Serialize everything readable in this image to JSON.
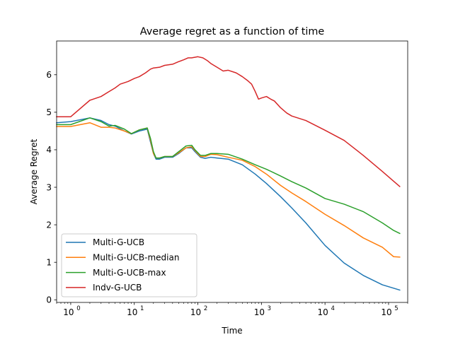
{
  "chart_data": {
    "type": "line",
    "title": "Average regret as a function of time",
    "xlabel": "Time",
    "ylabel": "Average Regret",
    "xscale": "log",
    "xlim": [
      0.6,
      200000
    ],
    "ylim": [
      -0.07,
      6.9
    ],
    "xticks": [
      {
        "value": 1,
        "base": "10",
        "exp": "0"
      },
      {
        "value": 10,
        "base": "10",
        "exp": "1"
      },
      {
        "value": 100,
        "base": "10",
        "exp": "2"
      },
      {
        "value": 1000,
        "base": "10",
        "exp": "3"
      },
      {
        "value": 10000,
        "base": "10",
        "exp": "4"
      },
      {
        "value": 100000,
        "base": "10",
        "exp": "5"
      }
    ],
    "yticks": [
      0,
      1,
      2,
      3,
      4,
      5,
      6
    ],
    "grid": false,
    "legend_position": "lower-left",
    "series": [
      {
        "name": "Multi-G-UCB",
        "color": "#1f77b4",
        "x": [
          0.6,
          1,
          2,
          3,
          4,
          5,
          7,
          9,
          12,
          16,
          18,
          20,
          22,
          25,
          30,
          40,
          50,
          65,
          80,
          90,
          110,
          130,
          160,
          200,
          300,
          500,
          800,
          1200,
          2000,
          3000,
          5000,
          10000,
          20000,
          40000,
          80000,
          150000
        ],
        "y": [
          4.72,
          4.75,
          4.85,
          4.78,
          4.67,
          4.63,
          4.5,
          4.42,
          4.5,
          4.55,
          4.2,
          3.9,
          3.75,
          3.75,
          3.8,
          3.8,
          3.9,
          4.05,
          4.05,
          3.95,
          3.8,
          3.77,
          3.8,
          3.78,
          3.75,
          3.6,
          3.35,
          3.1,
          2.75,
          2.45,
          2.05,
          1.45,
          0.98,
          0.65,
          0.4,
          0.26
        ]
      },
      {
        "name": "Multi-G-UCB-median",
        "color": "#ff7f0e",
        "x": [
          0.6,
          1,
          2,
          3,
          4,
          5,
          7,
          9,
          12,
          16,
          18,
          20,
          22,
          25,
          30,
          40,
          50,
          65,
          80,
          90,
          110,
          130,
          160,
          200,
          300,
          500,
          800,
          1200,
          2000,
          3000,
          5000,
          10000,
          20000,
          40000,
          80000,
          120000,
          150000
        ],
        "y": [
          4.62,
          4.62,
          4.72,
          4.6,
          4.6,
          4.58,
          4.5,
          4.43,
          4.53,
          4.58,
          4.25,
          3.9,
          3.78,
          3.78,
          3.82,
          3.82,
          3.92,
          4.05,
          4.08,
          3.98,
          3.82,
          3.82,
          3.88,
          3.87,
          3.8,
          3.72,
          3.55,
          3.35,
          3.05,
          2.85,
          2.62,
          2.28,
          1.98,
          1.65,
          1.4,
          1.15,
          1.14
        ]
      },
      {
        "name": "Multi-G-UCB-max",
        "color": "#2ca02c",
        "x": [
          0.6,
          1,
          2,
          3,
          4,
          5,
          7,
          9,
          12,
          16,
          18,
          20,
          22,
          25,
          30,
          40,
          50,
          65,
          80,
          90,
          110,
          130,
          160,
          200,
          300,
          500,
          800,
          1200,
          2000,
          3000,
          5000,
          10000,
          20000,
          40000,
          80000,
          120000,
          150000
        ],
        "y": [
          4.67,
          4.67,
          4.85,
          4.75,
          4.63,
          4.65,
          4.55,
          4.43,
          4.53,
          4.58,
          4.3,
          3.95,
          3.78,
          3.78,
          3.82,
          3.82,
          3.95,
          4.1,
          4.12,
          4.0,
          3.85,
          3.85,
          3.9,
          3.9,
          3.88,
          3.75,
          3.6,
          3.48,
          3.3,
          3.15,
          2.98,
          2.7,
          2.55,
          2.35,
          2.05,
          1.85,
          1.77
        ]
      },
      {
        "name": "Indv-G-UCB",
        "color": "#d62728",
        "x": [
          0.6,
          1,
          2,
          3,
          4,
          5,
          6,
          8,
          10,
          12,
          15,
          18,
          20,
          25,
          30,
          40,
          50,
          60,
          70,
          80,
          100,
          120,
          140,
          160,
          200,
          250,
          300,
          400,
          500,
          600,
          700,
          800,
          900,
          1000,
          1200,
          1400,
          1600,
          2000,
          2500,
          3000,
          5000,
          10000,
          20000,
          40000,
          80000,
          150000
        ],
        "y": [
          4.88,
          4.88,
          5.32,
          5.42,
          5.55,
          5.65,
          5.75,
          5.82,
          5.9,
          5.95,
          6.05,
          6.15,
          6.18,
          6.2,
          6.25,
          6.28,
          6.35,
          6.4,
          6.45,
          6.45,
          6.48,
          6.45,
          6.38,
          6.3,
          6.2,
          6.1,
          6.12,
          6.05,
          5.95,
          5.85,
          5.75,
          5.55,
          5.35,
          5.38,
          5.42,
          5.35,
          5.3,
          5.12,
          4.98,
          4.9,
          4.78,
          4.52,
          4.25,
          3.85,
          3.42,
          3.02
        ]
      }
    ]
  }
}
